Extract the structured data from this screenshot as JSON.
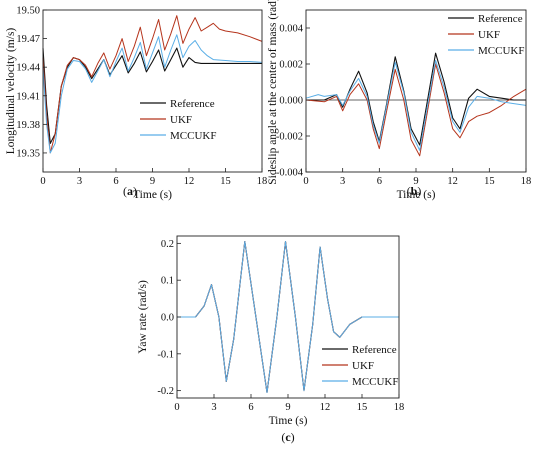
{
  "chart_data": [
    {
      "id": "a",
      "type": "line",
      "panel_label": "a",
      "xlabel": "Time (s)",
      "ylabel": "Longitudinal velocity (m/s)",
      "xlim": [
        0,
        18
      ],
      "ylim": [
        19.33,
        19.5
      ],
      "xticks": [
        0,
        3,
        6,
        9,
        12,
        15,
        18
      ],
      "yticks": [
        19.35,
        19.38,
        19.41,
        19.44,
        19.47,
        19.5
      ],
      "ytick_labels": [
        "19.35",
        "19.38",
        "19.41",
        "19.44",
        "19.47",
        "19.50"
      ],
      "legend_position": "center-right",
      "series": [
        {
          "name": "Reference",
          "color": "#111111",
          "x": [
            0,
            0.3,
            0.6,
            1.0,
            1.5,
            2.0,
            2.5,
            3.0,
            3.5,
            4.0,
            4.5,
            5.0,
            5.5,
            6.0,
            6.5,
            7.0,
            7.5,
            8.0,
            8.5,
            9.0,
            9.5,
            10.0,
            10.5,
            11.0,
            11.5,
            12.0,
            12.5,
            13.0,
            13.5,
            14.0,
            15.0,
            16.0,
            17.0,
            18.0
          ],
          "y": [
            19.46,
            19.4,
            19.36,
            19.37,
            19.42,
            19.44,
            19.45,
            19.448,
            19.44,
            19.428,
            19.438,
            19.448,
            19.432,
            19.442,
            19.452,
            19.434,
            19.444,
            19.456,
            19.435,
            19.446,
            19.458,
            19.436,
            19.448,
            19.46,
            19.44,
            19.45,
            19.445,
            19.444,
            19.444,
            19.444,
            19.444,
            19.444,
            19.444,
            19.444
          ]
        },
        {
          "name": "UKF",
          "color": "#b5341c",
          "x": [
            0,
            0.3,
            0.6,
            1.0,
            1.5,
            2.0,
            2.5,
            3.0,
            3.5,
            4.0,
            4.5,
            5.0,
            5.5,
            6.0,
            6.5,
            7.0,
            7.5,
            8.0,
            8.5,
            9.0,
            9.5,
            10.0,
            10.5,
            11.0,
            11.5,
            12.0,
            12.5,
            13.0,
            13.5,
            14.0,
            14.5,
            15.0,
            16.0,
            17.0,
            18.0
          ],
          "y": [
            19.45,
            19.39,
            19.35,
            19.37,
            19.42,
            19.442,
            19.45,
            19.448,
            19.442,
            19.43,
            19.444,
            19.455,
            19.438,
            19.452,
            19.47,
            19.446,
            19.462,
            19.482,
            19.452,
            19.47,
            19.49,
            19.458,
            19.475,
            19.494,
            19.465,
            19.48,
            19.492,
            19.478,
            19.482,
            19.486,
            19.48,
            19.478,
            19.476,
            19.472,
            19.467
          ]
        },
        {
          "name": "MCCUKF",
          "color": "#5aaee6",
          "x": [
            0,
            0.3,
            0.6,
            1.0,
            1.5,
            2.0,
            2.5,
            3.0,
            3.5,
            4.0,
            4.5,
            5.0,
            5.5,
            6.0,
            6.5,
            7.0,
            7.5,
            8.0,
            8.5,
            9.0,
            9.5,
            10.0,
            10.5,
            11.0,
            11.5,
            12.0,
            12.5,
            13.0,
            13.5,
            14.0,
            15.0,
            16.0,
            17.0,
            18.0
          ],
          "y": [
            19.44,
            19.38,
            19.35,
            19.36,
            19.41,
            19.438,
            19.447,
            19.446,
            19.438,
            19.424,
            19.436,
            19.448,
            19.43,
            19.446,
            19.46,
            19.436,
            19.45,
            19.466,
            19.438,
            19.455,
            19.472,
            19.44,
            19.458,
            19.474,
            19.45,
            19.462,
            19.468,
            19.458,
            19.452,
            19.448,
            19.447,
            19.446,
            19.446,
            19.445
          ]
        }
      ]
    },
    {
      "id": "b",
      "type": "line",
      "panel_label": "b",
      "xlabel": "Time (s)",
      "ylabel": "Sideslip angle at the center of mass (rad)",
      "xlim": [
        0,
        18
      ],
      "ylim": [
        -0.004,
        0.005
      ],
      "xticks": [
        0,
        3,
        6,
        9,
        12,
        15,
        18
      ],
      "yticks": [
        -0.004,
        -0.002,
        0.0,
        0.002,
        0.004
      ],
      "ytick_labels": [
        "-0.004",
        "-0.002",
        "0.000",
        "0.002",
        "0.004"
      ],
      "zero_line": true,
      "legend_position": "top-right",
      "series": [
        {
          "name": "Reference",
          "color": "#111111",
          "x": [
            0,
            1.5,
            2.5,
            3.0,
            3.6,
            4.3,
            5.0,
            5.5,
            6.0,
            6.6,
            7.3,
            8.0,
            8.6,
            9.3,
            10.0,
            10.6,
            11.3,
            12.0,
            12.6,
            13.3,
            14.0,
            15.0,
            16.0,
            17.0,
            18.0
          ],
          "y": [
            0.0,
            0.0,
            0.0003,
            -0.0004,
            0.0006,
            0.0016,
            0.0004,
            -0.0012,
            -0.0023,
            -0.0002,
            0.0024,
            0.0005,
            -0.0016,
            -0.0025,
            0.0002,
            0.0026,
            0.001,
            -0.001,
            -0.0016,
            0.0001,
            0.0006,
            0.0002,
            0.0001,
            0.0,
            0.0
          ]
        },
        {
          "name": "UKF",
          "color": "#b5341c",
          "x": [
            0,
            1.5,
            2.5,
            3.0,
            3.6,
            4.3,
            5.0,
            5.5,
            6.0,
            6.6,
            7.3,
            8.0,
            8.6,
            9.3,
            10.0,
            10.6,
            11.3,
            12.0,
            12.6,
            13.3,
            14.0,
            15.0,
            16.0,
            17.0,
            18.0
          ],
          "y": [
            0.0,
            -0.0001,
            0.0002,
            -0.0006,
            0.0003,
            0.0009,
            0.0,
            -0.0016,
            -0.0027,
            -0.0006,
            0.0017,
            0.0,
            -0.0022,
            -0.0031,
            -0.0004,
            0.002,
            0.0004,
            -0.0016,
            -0.0021,
            -0.0012,
            -0.0009,
            -0.0007,
            -0.0003,
            0.0002,
            0.0006
          ]
        },
        {
          "name": "MCCUKF",
          "color": "#5aaee6",
          "x": [
            0,
            1.0,
            1.5,
            2.5,
            3.0,
            3.6,
            4.3,
            5.0,
            5.5,
            6.0,
            6.6,
            7.3,
            8.0,
            8.6,
            9.3,
            10.0,
            10.6,
            11.3,
            12.0,
            12.6,
            13.3,
            14.0,
            15.0,
            16.0,
            17.0,
            18.0
          ],
          "y": [
            0.0001,
            0.0003,
            0.0002,
            0.0003,
            -0.0003,
            0.0005,
            0.0012,
            0.0002,
            -0.0014,
            -0.0024,
            -0.0003,
            0.0021,
            0.0004,
            -0.0018,
            -0.0028,
            -0.0001,
            0.0022,
            0.0007,
            -0.0012,
            -0.0018,
            -0.0004,
            0.0002,
            0.0001,
            -0.0001,
            -0.0002,
            -0.0003
          ]
        }
      ]
    },
    {
      "id": "c",
      "type": "line",
      "panel_label": "c",
      "xlabel": "Time (s)",
      "ylabel": "Yaw rate (rad/s)",
      "xlim": [
        0,
        18
      ],
      "ylim": [
        -0.22,
        0.22
      ],
      "xticks": [
        0,
        3,
        6,
        9,
        12,
        15,
        18
      ],
      "yticks": [
        -0.2,
        -0.1,
        0.0,
        0.1,
        0.2
      ],
      "ytick_labels": [
        "-0.2",
        "-0.1",
        "0.0",
        "0.1",
        "0.2"
      ],
      "legend_position": "bottom-right",
      "series": [
        {
          "name": "Reference",
          "color": "#111111",
          "x": [
            0,
            1.5,
            2.2,
            2.8,
            3.4,
            4.0,
            4.6,
            5.5,
            6.4,
            7.3,
            8.1,
            8.8,
            9.6,
            10.3,
            11.0,
            11.6,
            12.2,
            12.7,
            13.2,
            14.0,
            15.0,
            16.0,
            17.0,
            18.0
          ],
          "y": [
            0.0,
            0.0,
            0.03,
            0.088,
            0.0,
            -0.175,
            -0.06,
            0.205,
            0.0,
            -0.205,
            0.0,
            0.205,
            0.0,
            -0.2,
            -0.02,
            0.19,
            0.05,
            -0.04,
            -0.055,
            -0.02,
            0.0,
            0.0,
            0.0,
            0.0
          ]
        },
        {
          "name": "UKF",
          "color": "#b5341c",
          "x": [
            0,
            1.5,
            2.2,
            2.8,
            3.4,
            4.0,
            4.6,
            5.5,
            6.4,
            7.3,
            8.1,
            8.8,
            9.6,
            10.3,
            11.0,
            11.6,
            12.2,
            12.7,
            13.2,
            14.0,
            15.0,
            16.0,
            17.0,
            18.0
          ],
          "y": [
            0.0,
            0.0,
            0.03,
            0.088,
            0.0,
            -0.175,
            -0.06,
            0.205,
            0.0,
            -0.205,
            0.0,
            0.205,
            0.0,
            -0.2,
            -0.02,
            0.19,
            0.05,
            -0.04,
            -0.055,
            -0.02,
            0.0,
            0.0,
            0.0,
            0.0
          ]
        },
        {
          "name": "MCCUKF",
          "color": "#5aaee6",
          "x": [
            0,
            1.5,
            2.2,
            2.8,
            3.4,
            4.0,
            4.6,
            5.5,
            6.4,
            7.3,
            8.1,
            8.8,
            9.6,
            10.3,
            11.0,
            11.6,
            12.2,
            12.7,
            13.2,
            14.0,
            15.0,
            16.0,
            17.0,
            18.0
          ],
          "y": [
            0.0,
            0.0,
            0.03,
            0.088,
            0.0,
            -0.175,
            -0.06,
            0.205,
            0.0,
            -0.205,
            0.0,
            0.205,
            0.0,
            -0.2,
            -0.02,
            0.19,
            0.05,
            -0.04,
            -0.055,
            -0.02,
            0.0,
            0.0,
            0.0,
            0.0
          ]
        }
      ]
    }
  ]
}
